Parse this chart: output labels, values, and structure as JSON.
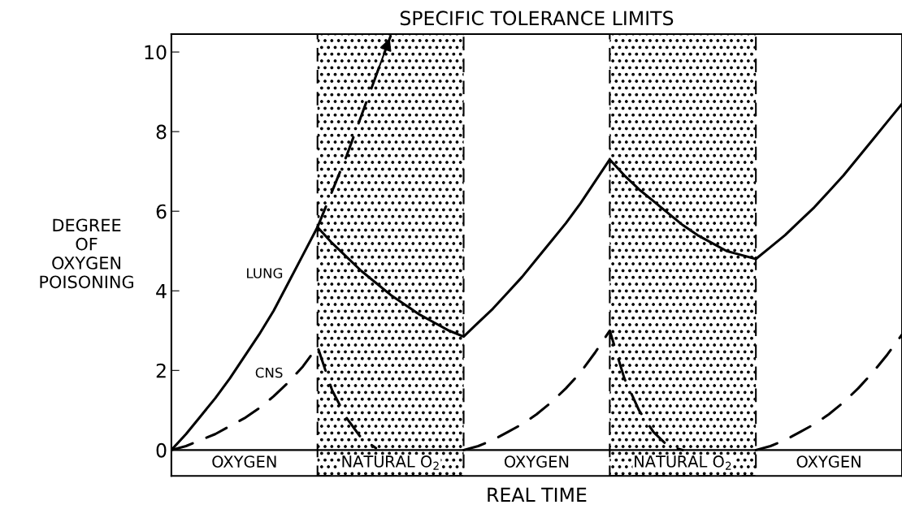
{
  "chart_data": {
    "type": "line",
    "title": "SPECIFIC TOLERANCE LIMITS",
    "xlabel": "REAL TIME",
    "ylabel": "DEGREE\nOF\nOXYGEN\nPOISONING",
    "categories": [
      null,
      null,
      null,
      null,
      null,
      null,
      null,
      null,
      null,
      null,
      null,
      null,
      null,
      null,
      null,
      null,
      null,
      null,
      null,
      null,
      null,
      null,
      null,
      null,
      null,
      null,
      null,
      null,
      null,
      null,
      null,
      null,
      null,
      null,
      null,
      null,
      null,
      null,
      null,
      null,
      null,
      null,
      null,
      null,
      null,
      null,
      null,
      null,
      null,
      null,
      null
    ],
    "series": [
      {
        "name": "LUNG",
        "color": "#000000",
        "line_style": "solid",
        "values": [
          0,
          0.4,
          0.85,
          1.3,
          1.8,
          2.35,
          2.9,
          3.5,
          4.2,
          4.9,
          5.6,
          5.2,
          4.85,
          4.5,
          4.2,
          3.9,
          3.65,
          3.4,
          3.2,
          3.0,
          2.85,
          3.2,
          3.55,
          3.95,
          4.35,
          4.8,
          5.25,
          5.7,
          6.2,
          6.75,
          7.3,
          6.9,
          6.55,
          6.25,
          5.95,
          5.65,
          5.4,
          5.2,
          5.0,
          4.9,
          4.8,
          5.1,
          5.4,
          5.75,
          6.1,
          6.5,
          6.9,
          7.35,
          7.8,
          8.25,
          8.7
        ]
      },
      {
        "name": "CNS",
        "color": "#000000",
        "line_style": "dashed",
        "values": [
          0,
          0.1,
          0.25,
          0.4,
          0.6,
          0.8,
          1.05,
          1.35,
          1.7,
          2.1,
          2.6,
          1.5,
          0.8,
          0.3,
          0.05,
          null,
          null,
          null,
          null,
          null,
          0,
          0.1,
          0.25,
          0.45,
          0.65,
          0.9,
          1.2,
          1.55,
          1.95,
          2.45,
          3.0,
          1.8,
          1.0,
          0.45,
          0.1,
          0,
          null,
          null,
          null,
          null,
          0,
          0.1,
          0.25,
          0.45,
          0.65,
          0.9,
          1.2,
          1.55,
          1.95,
          2.4,
          2.9
        ]
      },
      {
        "color": "#000000",
        "line_style": "dashed",
        "values": [
          null,
          null,
          null,
          null,
          null,
          null,
          null,
          null,
          null,
          null,
          5.6,
          6.5,
          7.4,
          8.4,
          9.4,
          10.4,
          null,
          null,
          null,
          null,
          null,
          null,
          null,
          null,
          null,
          null,
          null,
          null,
          null,
          null,
          null,
          null,
          null,
          null,
          null,
          null,
          null,
          null,
          null,
          null,
          null,
          null,
          null,
          null,
          null,
          null,
          null,
          null,
          null,
          null,
          null
        ]
      }
    ],
    "ylim": [
      -0.65,
      10.45
    ],
    "yticks": [
      0,
      2,
      4,
      6,
      8,
      10
    ],
    "tick_labels": "y",
    "grid": false,
    "legend": false,
    "ref_lines": [
      {
        "axis": "y",
        "value": 0,
        "color": "#000000"
      }
    ],
    "annotations": [
      "OXYGEN",
      "NATURAL O$_{2}$",
      "OXYGEN",
      "NATURAL O$_{2}$",
      "OXYGEN"
    ]
  }
}
